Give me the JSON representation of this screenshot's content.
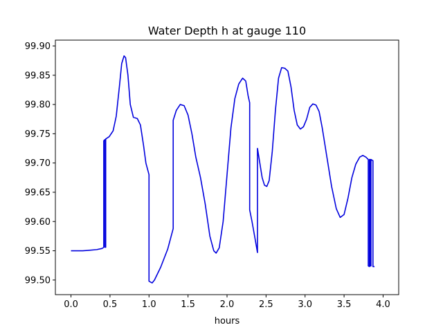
{
  "chart_data": {
    "type": "line",
    "title": "Water Depth h at gauge 110",
    "xlabel": "hours",
    "ylabel": "",
    "xlim": [
      -0.2,
      4.2
    ],
    "ylim": [
      99.475,
      99.91
    ],
    "xticks": [
      0.0,
      0.5,
      1.0,
      1.5,
      2.0,
      2.5,
      3.0,
      3.5,
      4.0
    ],
    "xtick_labels": [
      "0.0",
      "0.5",
      "1.0",
      "1.5",
      "2.0",
      "2.5",
      "3.0",
      "3.5",
      "4.0"
    ],
    "yticks": [
      99.5,
      99.55,
      99.6,
      99.65,
      99.7,
      99.75,
      99.8,
      99.85,
      99.9
    ],
    "ytick_labels": [
      "99.50",
      "99.55",
      "99.60",
      "99.65",
      "99.70",
      "99.75",
      "99.80",
      "99.85",
      "99.90"
    ],
    "grid": false,
    "legend": "none",
    "series": [
      {
        "color": "#0000dd",
        "points": [
          [
            0.0,
            99.55
          ],
          [
            0.15,
            99.55
          ],
          [
            0.25,
            99.551
          ],
          [
            0.33,
            99.552
          ],
          [
            0.4,
            99.554
          ],
          [
            0.42,
            99.556
          ],
          [
            0.42,
            99.738
          ],
          [
            0.435,
            99.74
          ],
          [
            0.435,
            99.556
          ],
          [
            0.445,
            99.556
          ],
          [
            0.445,
            99.741
          ],
          [
            0.49,
            99.745
          ],
          [
            0.54,
            99.755
          ],
          [
            0.58,
            99.78
          ],
          [
            0.62,
            99.83
          ],
          [
            0.65,
            99.87
          ],
          [
            0.68,
            99.883
          ],
          [
            0.7,
            99.88
          ],
          [
            0.73,
            99.85
          ],
          [
            0.76,
            99.8
          ],
          [
            0.8,
            99.778
          ],
          [
            0.85,
            99.776
          ],
          [
            0.89,
            99.765
          ],
          [
            0.93,
            99.73
          ],
          [
            0.96,
            99.7
          ],
          [
            0.99,
            99.685
          ],
          [
            1.0,
            99.68
          ],
          [
            1.0,
            99.498
          ],
          [
            1.04,
            99.495
          ],
          [
            1.07,
            99.5
          ],
          [
            1.15,
            99.522
          ],
          [
            1.24,
            99.553
          ],
          [
            1.31,
            99.588
          ],
          [
            1.31,
            99.773
          ],
          [
            1.35,
            99.79
          ],
          [
            1.4,
            99.8
          ],
          [
            1.45,
            99.798
          ],
          [
            1.5,
            99.782
          ],
          [
            1.55,
            99.75
          ],
          [
            1.6,
            99.71
          ],
          [
            1.66,
            99.675
          ],
          [
            1.72,
            99.63
          ],
          [
            1.78,
            99.575
          ],
          [
            1.83,
            99.55
          ],
          [
            1.86,
            99.546
          ],
          [
            1.9,
            99.555
          ],
          [
            1.95,
            99.6
          ],
          [
            2.0,
            99.68
          ],
          [
            2.05,
            99.76
          ],
          [
            2.1,
            99.81
          ],
          [
            2.15,
            99.835
          ],
          [
            2.2,
            99.845
          ],
          [
            2.24,
            99.84
          ],
          [
            2.27,
            99.815
          ],
          [
            2.29,
            99.803
          ],
          [
            2.29,
            99.62
          ],
          [
            2.32,
            99.6
          ],
          [
            2.36,
            99.57
          ],
          [
            2.39,
            99.547
          ],
          [
            2.39,
            99.725
          ],
          [
            2.42,
            99.7
          ],
          [
            2.45,
            99.675
          ],
          [
            2.48,
            99.662
          ],
          [
            2.51,
            99.66
          ],
          [
            2.54,
            99.67
          ],
          [
            2.58,
            99.72
          ],
          [
            2.62,
            99.79
          ],
          [
            2.66,
            99.845
          ],
          [
            2.7,
            99.863
          ],
          [
            2.74,
            99.862
          ],
          [
            2.78,
            99.857
          ],
          [
            2.82,
            99.83
          ],
          [
            2.86,
            99.79
          ],
          [
            2.9,
            99.765
          ],
          [
            2.94,
            99.758
          ],
          [
            2.98,
            99.762
          ],
          [
            3.02,
            99.775
          ],
          [
            3.06,
            99.795
          ],
          [
            3.1,
            99.801
          ],
          [
            3.14,
            99.799
          ],
          [
            3.18,
            99.788
          ],
          [
            3.22,
            99.76
          ],
          [
            3.28,
            99.71
          ],
          [
            3.34,
            99.66
          ],
          [
            3.4,
            99.622
          ],
          [
            3.45,
            99.607
          ],
          [
            3.5,
            99.612
          ],
          [
            3.55,
            99.64
          ],
          [
            3.6,
            99.675
          ],
          [
            3.65,
            99.698
          ],
          [
            3.7,
            99.71
          ],
          [
            3.74,
            99.713
          ],
          [
            3.78,
            99.71
          ],
          [
            3.81,
            99.706
          ],
          [
            3.81,
            99.524
          ],
          [
            3.825,
            99.523
          ],
          [
            3.825,
            99.706
          ],
          [
            3.835,
            99.706
          ],
          [
            3.835,
            99.524
          ],
          [
            3.845,
            99.524
          ],
          [
            3.845,
            99.706
          ],
          [
            3.87,
            99.704
          ],
          [
            3.87,
            99.523
          ],
          [
            3.89,
            99.523
          ]
        ]
      }
    ]
  }
}
